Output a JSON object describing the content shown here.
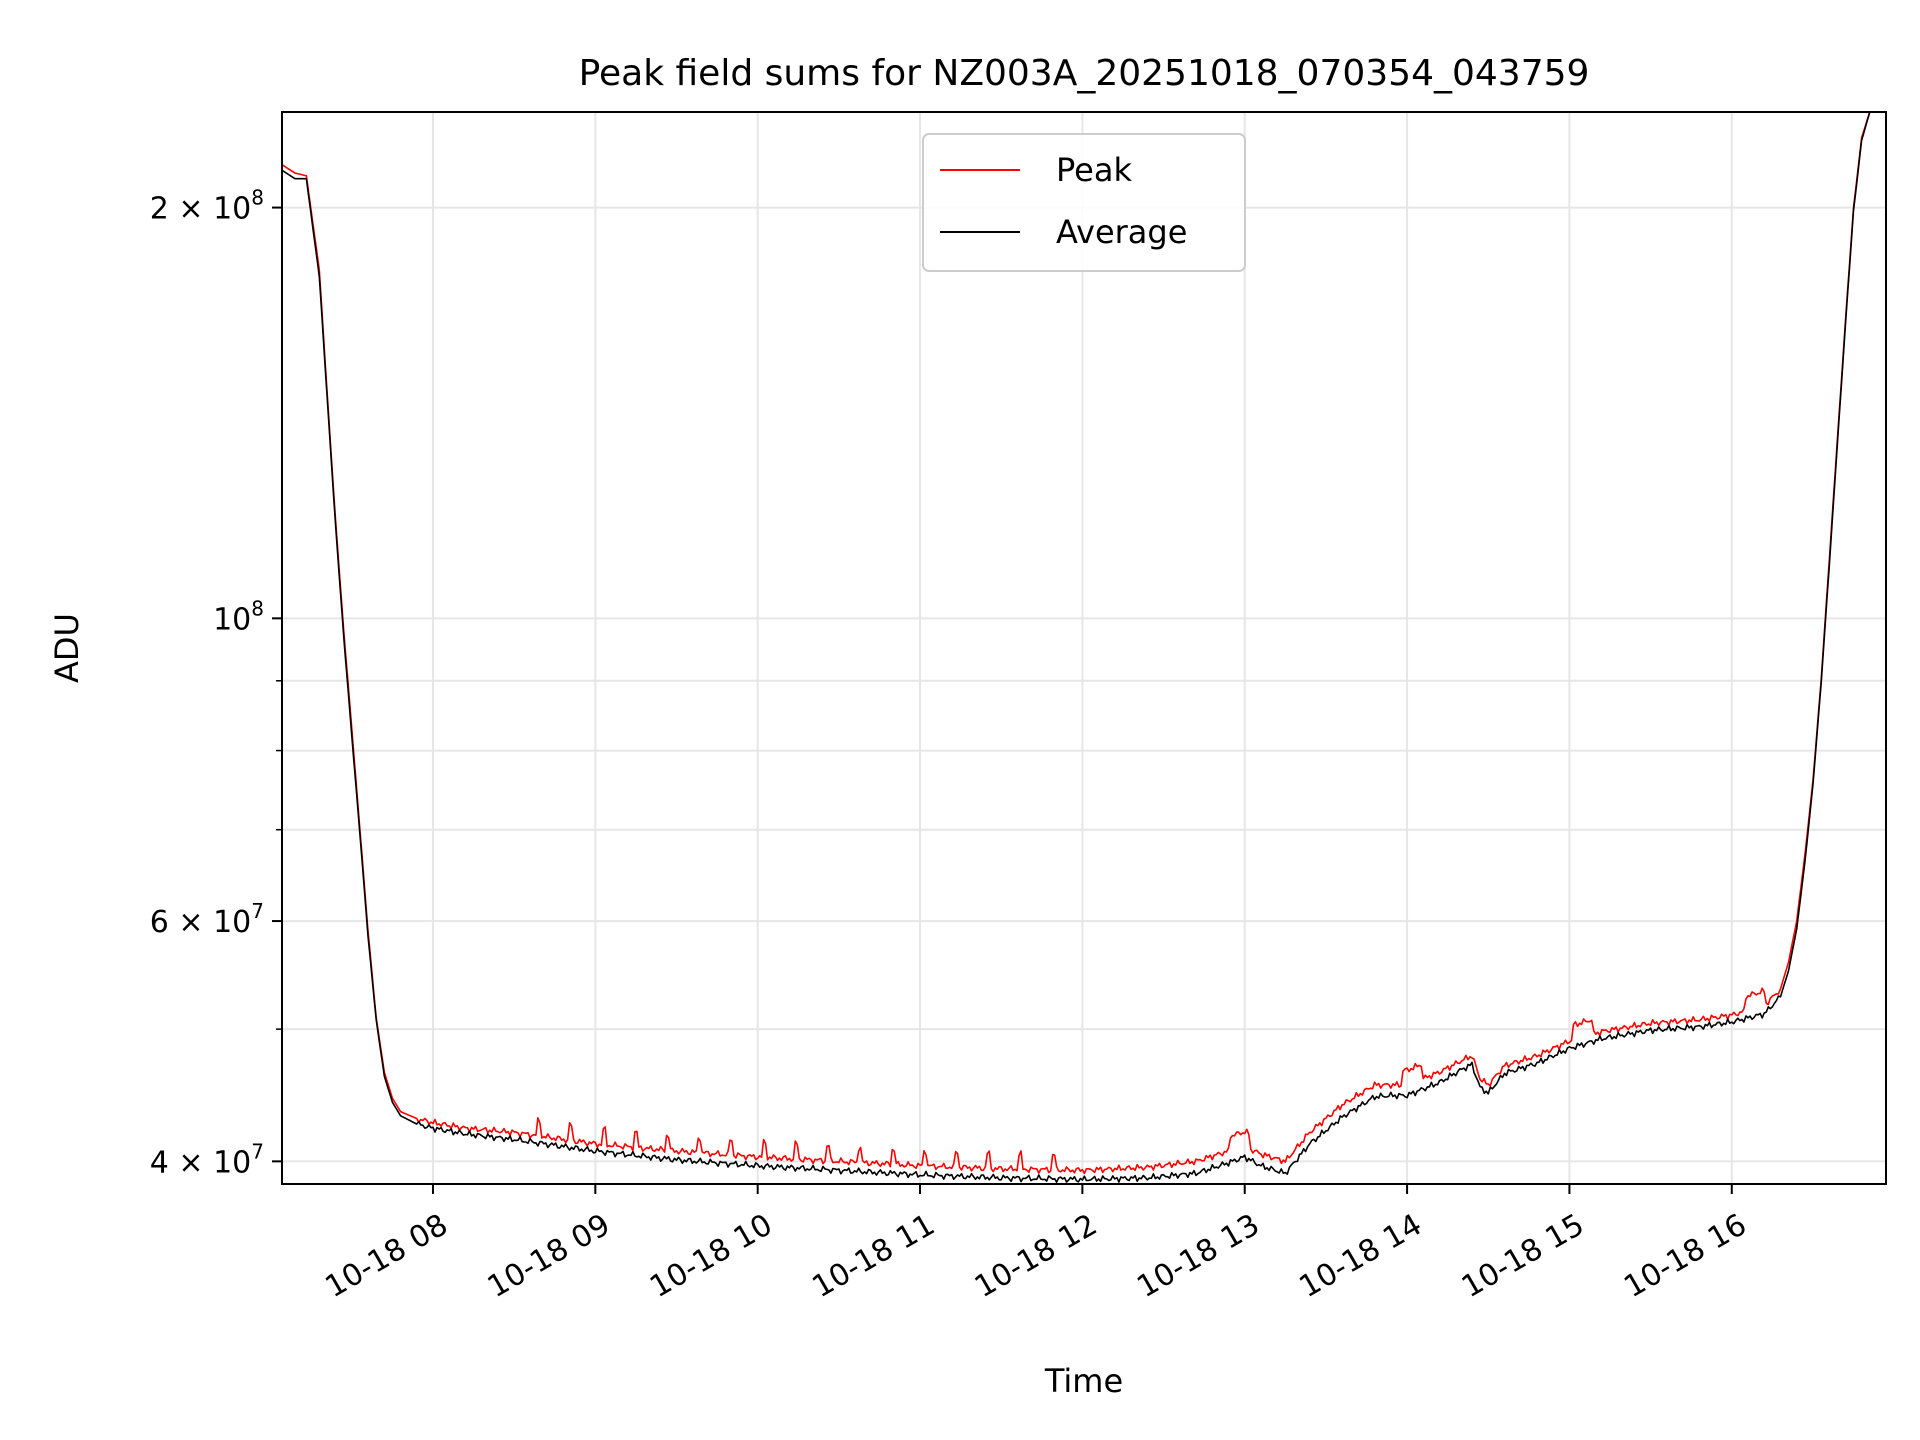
{
  "chart_data": {
    "type": "line",
    "title": "Peak field sums for NZ003A_20251018_070354_043759",
    "xlabel": "Time",
    "ylabel": "ADU",
    "y_scale": "log",
    "x_unit": "hour of day 2025-10-18",
    "xlim": [
      7.07,
      16.95
    ],
    "ylim": [
      38500000,
      235000000
    ],
    "grid": true,
    "legend_position": "top-center",
    "x_ticks": [
      {
        "value": 8,
        "label": "10-18 08"
      },
      {
        "value": 9,
        "label": "10-18 09"
      },
      {
        "value": 10,
        "label": "10-18 10"
      },
      {
        "value": 11,
        "label": "10-18 11"
      },
      {
        "value": 12,
        "label": "10-18 12"
      },
      {
        "value": 13,
        "label": "10-18 13"
      },
      {
        "value": 14,
        "label": "10-18 14"
      },
      {
        "value": 15,
        "label": "10-18 15"
      },
      {
        "value": 16,
        "label": "10-18 16"
      }
    ],
    "y_major_ticks": [
      {
        "value": 40000000,
        "base": "4 × 10",
        "exp": "7"
      },
      {
        "value": 60000000,
        "base": "6 × 10",
        "exp": "7"
      },
      {
        "value": 100000000,
        "base": "10",
        "exp": "8"
      },
      {
        "value": 200000000,
        "base": "2 × 10",
        "exp": "8"
      }
    ],
    "y_minor_ticks": [
      50000000,
      70000000,
      80000000,
      90000000
    ],
    "series": [
      {
        "name": "Peak",
        "color": "#ff0000",
        "x": [
          7.07,
          7.15,
          7.22,
          7.3,
          7.35,
          7.4,
          7.45,
          7.5,
          7.55,
          7.6,
          7.65,
          7.7,
          7.75,
          7.8,
          7.9,
          8.0,
          8.2,
          8.5,
          9.0,
          9.5,
          10.0,
          10.5,
          11.0,
          11.5,
          12.0,
          12.4,
          12.7,
          12.9,
          13.0,
          13.1,
          13.25,
          13.4,
          13.6,
          13.8,
          13.9,
          14.0,
          14.2,
          14.35,
          14.4,
          14.45,
          14.5,
          14.6,
          14.8,
          15.0,
          15.2,
          15.5,
          15.8,
          16.0,
          16.2,
          16.3,
          16.35,
          16.4,
          16.45,
          16.5,
          16.55,
          16.6,
          16.65,
          16.7,
          16.75,
          16.8,
          16.85,
          16.95
        ],
        "values": [
          215000000,
          212000000,
          211000000,
          180000000,
          145000000,
          118000000,
          98000000,
          83000000,
          70000000,
          59000000,
          51000000,
          46500000,
          44500000,
          43500000,
          43000000,
          42700000,
          42300000,
          42000000,
          41200000,
          40700000,
          40300000,
          40000000,
          39700000,
          39500000,
          39400000,
          39600000,
          40000000,
          40700000,
          41000000,
          40500000,
          40000000,
          42000000,
          44000000,
          45500000,
          45500000,
          45500000,
          46500000,
          47500000,
          47800000,
          46000000,
          45500000,
          47000000,
          47800000,
          49000000,
          49800000,
          50500000,
          50800000,
          51200000,
          52000000,
          53500000,
          56000000,
          60000000,
          67000000,
          76000000,
          90000000,
          110000000,
          135000000,
          165000000,
          200000000,
          225000000,
          235000000,
          235000000
        ]
      },
      {
        "name": "Average",
        "color": "#000000",
        "x": [
          7.07,
          7.15,
          7.22,
          7.3,
          7.35,
          7.4,
          7.45,
          7.5,
          7.55,
          7.6,
          7.65,
          7.7,
          7.75,
          7.8,
          7.9,
          8.0,
          8.2,
          8.5,
          9.0,
          9.5,
          10.0,
          10.5,
          11.0,
          11.5,
          12.0,
          12.4,
          12.7,
          12.9,
          13.0,
          13.1,
          13.25,
          13.4,
          13.6,
          13.8,
          13.9,
          14.0,
          14.2,
          14.35,
          14.4,
          14.45,
          14.5,
          14.6,
          14.8,
          15.0,
          15.2,
          15.5,
          15.8,
          16.0,
          16.2,
          16.3,
          16.35,
          16.4,
          16.45,
          16.5,
          16.55,
          16.6,
          16.65,
          16.7,
          16.75,
          16.8,
          16.85,
          16.95
        ],
        "values": [
          213000000,
          210000000,
          210000000,
          178000000,
          144000000,
          117000000,
          97000000,
          82000000,
          69500000,
          58500000,
          50800000,
          46200000,
          44200000,
          43200000,
          42600000,
          42300000,
          41900000,
          41500000,
          40700000,
          40100000,
          39700000,
          39400000,
          39100000,
          38900000,
          38800000,
          38900000,
          39200000,
          39900000,
          40300000,
          39700000,
          39200000,
          41200000,
          43100000,
          44600000,
          44700000,
          44700000,
          45700000,
          46800000,
          47100000,
          45300000,
          44900000,
          46400000,
          47200000,
          48400000,
          49200000,
          49900000,
          50200000,
          50600000,
          51300000,
          52800000,
          55200000,
          59200000,
          66200000,
          75500000,
          89500000,
          109000000,
          134000000,
          164000000,
          199000000,
          224000000,
          235000000,
          235000000
        ]
      }
    ]
  }
}
